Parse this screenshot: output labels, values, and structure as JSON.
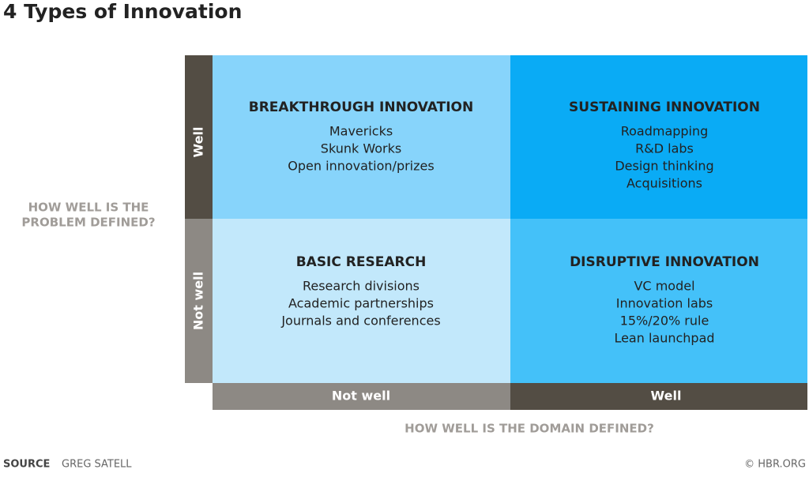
{
  "title": "4 Types of Innovation",
  "y_axis": {
    "label_lines": [
      "HOW WELL IS THE",
      "PROBLEM DEFINED?"
    ],
    "top": "Well",
    "bottom": "Not well"
  },
  "x_axis": {
    "label": "HOW WELL IS THE DOMAIN DEFINED?",
    "left": "Not well",
    "right": "Well"
  },
  "quadrants": [
    {
      "title": "BREAKTHROUGH INNOVATION",
      "items": [
        "Mavericks",
        "Skunk Works",
        "Open innovation/prizes"
      ]
    },
    {
      "title": "SUSTAINING INNOVATION",
      "items": [
        "Roadmapping",
        "R&D labs",
        "Design thinking",
        "Acquisitions"
      ]
    },
    {
      "title": "BASIC RESEARCH",
      "items": [
        "Research divisions",
        "Academic partnerships",
        "Journals and conferences"
      ]
    },
    {
      "title": "DISRUPTIVE INNOVATION",
      "items": [
        "VC model",
        "Innovation labs",
        "15%/20% rule",
        "Lean launchpad"
      ]
    }
  ],
  "footer": {
    "source_label": "SOURCE",
    "source": "GREG SATELL",
    "copyright": "© HBR.ORG"
  }
}
